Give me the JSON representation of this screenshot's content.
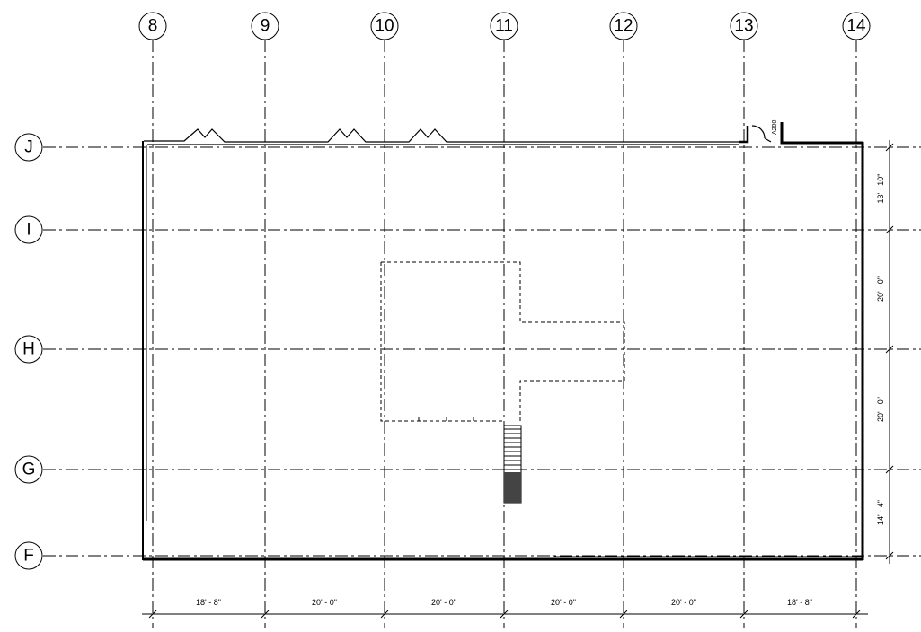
{
  "plan": {
    "column_grids": [
      "8",
      "9",
      "10",
      "11",
      "12",
      "13",
      "14"
    ],
    "row_grids": [
      "J",
      "I",
      "H",
      "G",
      "F"
    ],
    "bottom_dimensions": [
      "18' - 8\"",
      "20' - 0\"",
      "20' - 0\"",
      "20' - 0\"",
      "20' - 0\"",
      "18' - 8\""
    ],
    "right_dimensions": [
      "13' - 10\"",
      "20' - 0\"",
      "20' - 0\"",
      "14' - 4\""
    ],
    "section_tag": "A200"
  }
}
